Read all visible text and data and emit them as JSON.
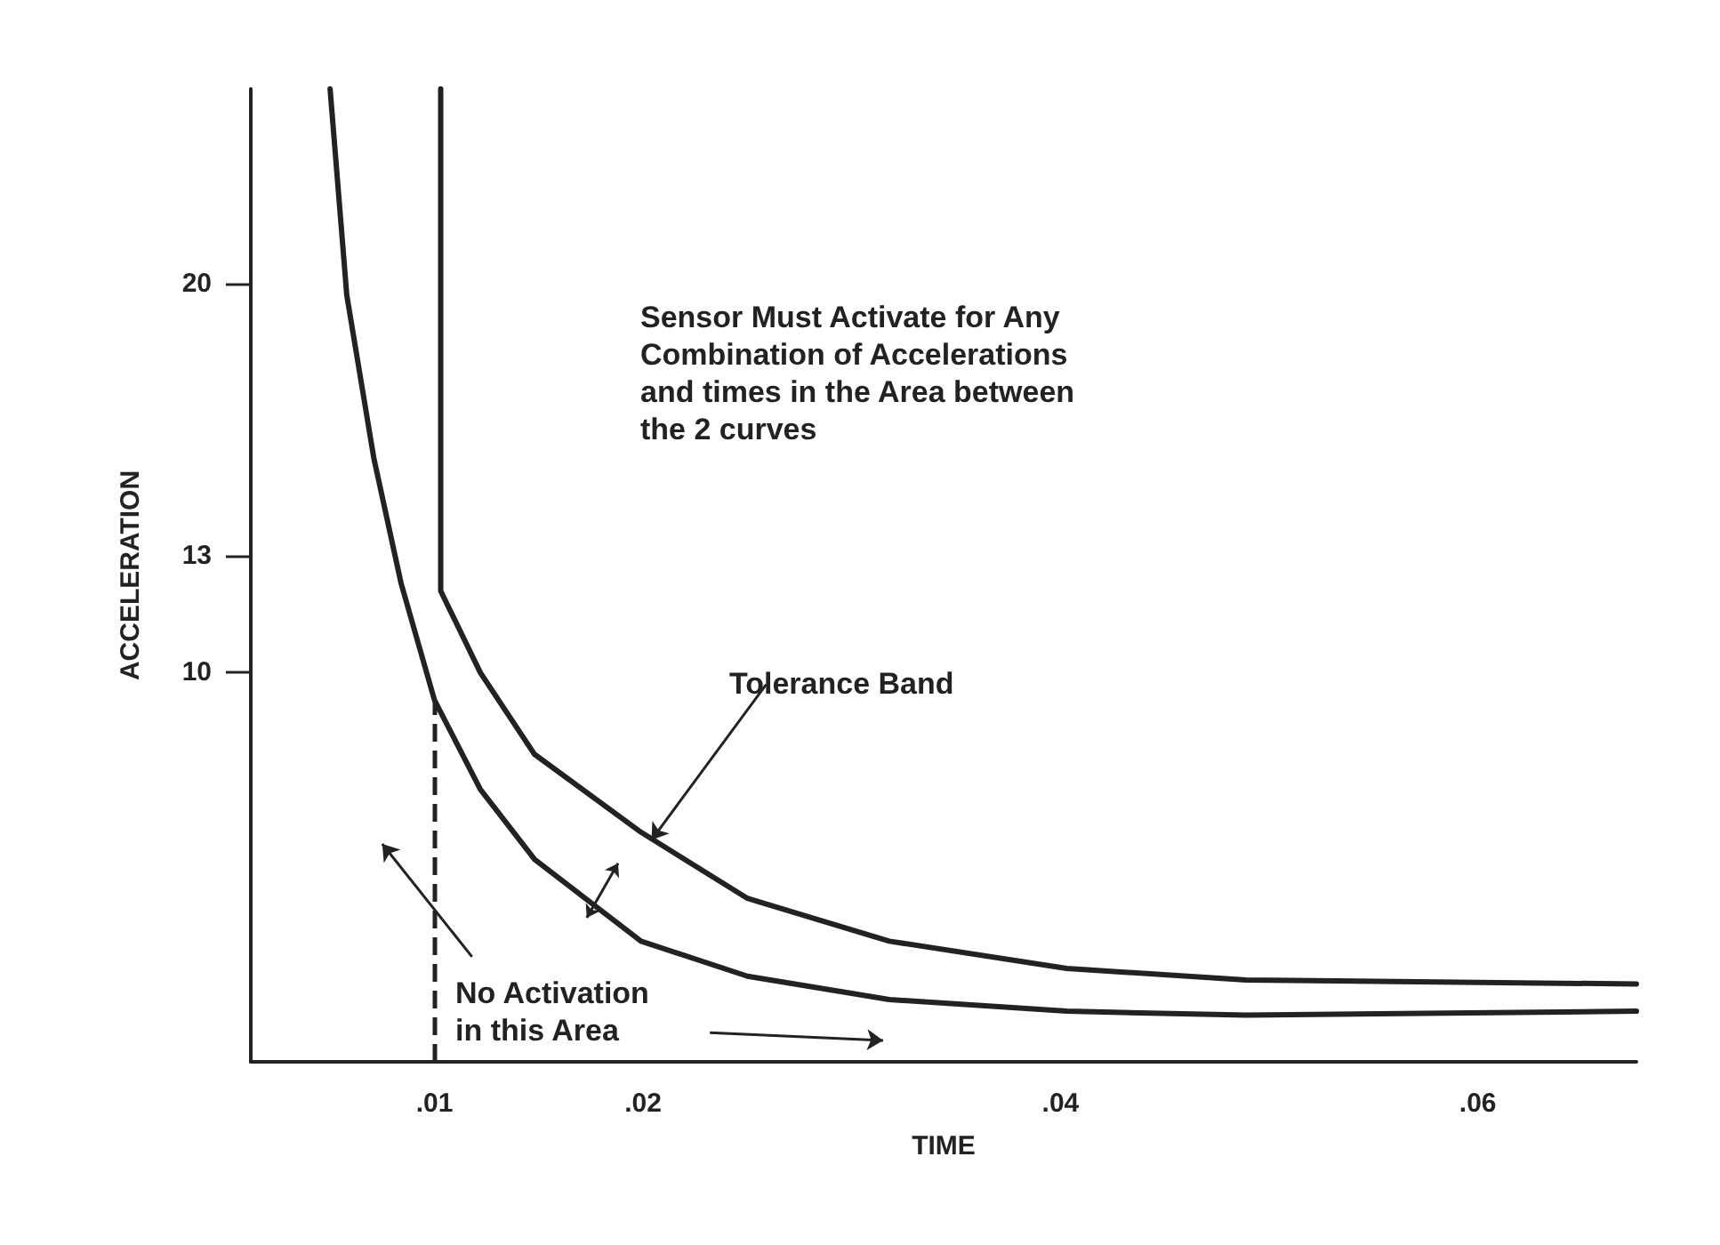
{
  "chart_data": {
    "type": "line",
    "xlabel": "TIME",
    "ylabel": "ACCELERATION",
    "xlim": [
      0.0012,
      0.0676
    ],
    "ylim": [
      0,
      25
    ],
    "xticks": [
      {
        "value": 0.01,
        "label": ".01"
      },
      {
        "value": 0.02,
        "label": ".02"
      },
      {
        "value": 0.04,
        "label": ".04"
      },
      {
        "value": 0.06,
        "label": ".06"
      }
    ],
    "yticks": [
      10,
      13,
      20
    ],
    "grid": false,
    "marker": "none",
    "line_style": "solid",
    "series": [
      {
        "color": "#222222",
        "x": [
          0.005,
          0.0058,
          0.0071,
          0.0084,
          0.01,
          0.0122,
          0.0148,
          0.0199,
          0.025,
          0.0318,
          0.0403,
          0.0489,
          0.0676
        ],
        "values": [
          25,
          19.7,
          15.5,
          12.3,
          9.3,
          7.0,
          5.2,
          3.1,
          2.2,
          1.6,
          1.3,
          1.2,
          1.3
        ]
      },
      {
        "color": "#222222",
        "x": [
          0.0103,
          0.0103,
          0.0122,
          0.0148,
          0.0199,
          0.025,
          0.0318,
          0.0403,
          0.0489,
          0.0676
        ],
        "values": [
          25,
          12.1,
          10.0,
          7.9,
          5.9,
          4.2,
          3.1,
          2.4,
          2.1,
          2.0
        ]
      }
    ],
    "ref_lines": [
      {
        "axis": "x",
        "value": 0.01,
        "line_style": "dashed",
        "color": "#222222"
      }
    ],
    "annotations": [
      "Sensor Must Activate for Any\nCombination of Accelerations\nand times in the Area between\nthe 2 curves",
      {
        "text": "Tolerance Band",
        "x": 0.0199,
        "y": 5.9
      },
      "No Activation\nin this Area"
    ]
  }
}
